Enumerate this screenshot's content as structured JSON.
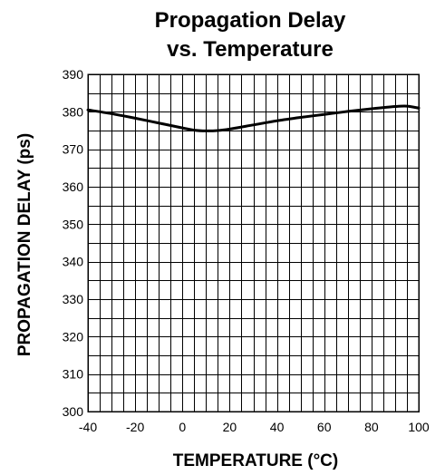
{
  "chart_data": {
    "type": "line",
    "title_line1": "Propagation Delay",
    "title_line2": "vs. Temperature",
    "xlabel": "TEMPERATURE (°C)",
    "ylabel": "PROPAGATION DELAY (ps)",
    "xlim": [
      -40,
      100
    ],
    "ylim": [
      300,
      390
    ],
    "xticks": [
      -40,
      -20,
      0,
      20,
      40,
      60,
      80,
      100
    ],
    "yticks": [
      300,
      310,
      320,
      330,
      340,
      350,
      360,
      370,
      380,
      390
    ],
    "x_minor_step": 5,
    "y_minor_step": 5,
    "grid": true,
    "series": [
      {
        "x": [
          -40,
          -30,
          -20,
          -10,
          0,
          5,
          10,
          15,
          20,
          30,
          40,
          50,
          60,
          70,
          80,
          90,
          95,
          100
        ],
        "y": [
          380.5,
          379.5,
          378.3,
          377.0,
          375.7,
          375.1,
          374.9,
          375.0,
          375.4,
          376.5,
          377.6,
          378.5,
          379.3,
          380.1,
          380.8,
          381.4,
          381.5,
          381.0
        ]
      }
    ]
  }
}
